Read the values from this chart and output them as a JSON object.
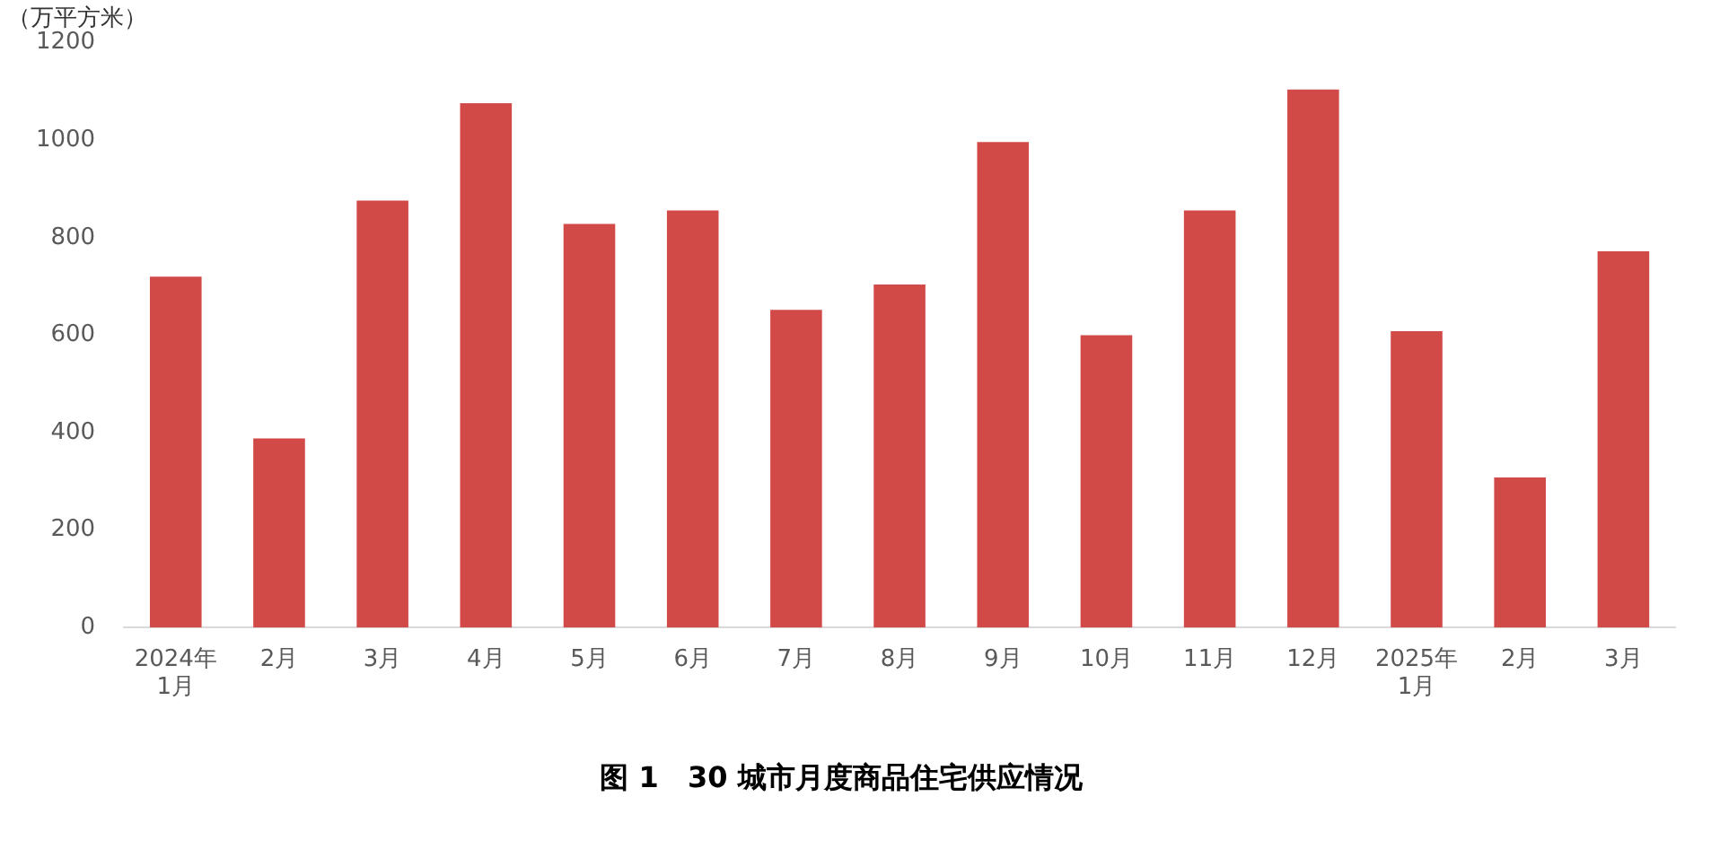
{
  "chart_data": {
    "type": "bar",
    "title": "图 1　30 城市月度商品住宅供应情况",
    "ylabel": "（万平方米）",
    "categories": [
      "2024年\n1月",
      "2月",
      "3月",
      "4月",
      "5月",
      "6月",
      "7月",
      "8月",
      "9月",
      "10月",
      "11月",
      "12月",
      "2025年\n1月",
      "2月",
      "3月"
    ],
    "values": [
      720,
      388,
      876,
      1076,
      828,
      856,
      652,
      704,
      996,
      600,
      856,
      1104,
      608,
      308,
      772
    ],
    "color": "#d24a47",
    "ylim": [
      0,
      1200
    ],
    "yticks": [
      0,
      200,
      400,
      600,
      800,
      1000,
      1200
    ],
    "grid": false,
    "legend": false
  }
}
